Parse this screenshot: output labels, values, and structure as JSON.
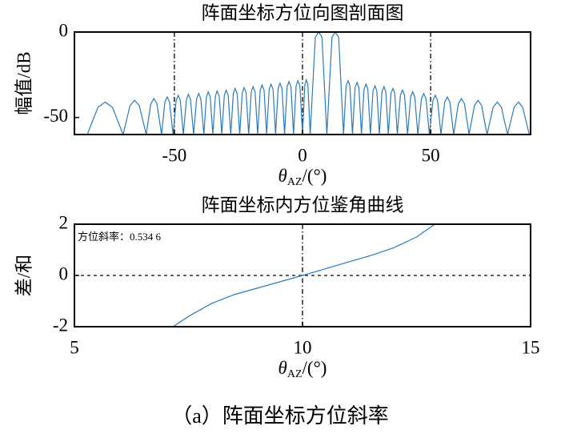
{
  "chart_data": [
    {
      "type": "line",
      "title": "阵面坐标方位向图剖面图",
      "ylabel": "幅值/dB",
      "xlabel": {
        "base": "θ",
        "sub": "AZ",
        "rest": "/(°)"
      },
      "xlim": [
        -89,
        89
      ],
      "ylim": [
        -60,
        0
      ],
      "xticks": [
        -50,
        0,
        50
      ],
      "yticks": [
        -50,
        0
      ],
      "xgrid": true,
      "grid": false,
      "color": "#2b7bba",
      "x": [
        -84,
        -79.8,
        -77,
        -74.2,
        -70,
        -67.3,
        -65.5,
        -63.7,
        -61,
        -59.2,
        -58,
        -56.8,
        -55,
        -53.7,
        -52.8,
        -51.9,
        -50.5,
        -49.3,
        -48.5,
        -47.7,
        -46.5,
        -45.3,
        -44.5,
        -43.7,
        -42.5,
        -41.3,
        -40.5,
        -39.7,
        -38.5,
        -37.5,
        -36.8,
        -36.0,
        -35,
        -34.0,
        -33.3,
        -32.5,
        -31.5,
        -30.5,
        -29.8,
        -29.0,
        -28,
        -27.0,
        -26.3,
        -25.5,
        -24.5,
        -23.5,
        -22.8,
        -22.0,
        -21,
        -20.0,
        -19.3,
        -18.5,
        -17.5,
        -16.5,
        -15.8,
        -15.0,
        -14,
        -13.0,
        -12.3,
        -11.5,
        -10.5,
        -9.5,
        -8.8,
        -8.0,
        -7,
        -6.0,
        -5.3,
        -4.5,
        -3.5,
        -2.5,
        -1.8,
        -1.0,
        0,
        0.9,
        1.5,
        2.1,
        3,
        5.0,
        6.3,
        7.6,
        9.5,
        11.5,
        12.8,
        14.1,
        16,
        17.0,
        17.8,
        18.5,
        19.5,
        20.5,
        21.3,
        22.0,
        23,
        24.0,
        24.8,
        25.5,
        26.5,
        27.5,
        28.3,
        29.0,
        30,
        31.0,
        31.8,
        32.5,
        33.5,
        34.5,
        35.3,
        36.0,
        37,
        38.2,
        39,
        39.8,
        41,
        42.2,
        43,
        43.8,
        45,
        46.4,
        47.3,
        48.2,
        49.5,
        50.9,
        51.8,
        52.7,
        54,
        55.5,
        56.5,
        57.5,
        59,
        60.8,
        62,
        63.2,
        65,
        67.1,
        68.5,
        69.9,
        72,
        74.4,
        76,
        77.6,
        80,
        82.6,
        84.3,
        85.9,
        88.5
      ],
      "values": [
        -60,
        -44,
        -41,
        -44,
        -60,
        -43,
        -40,
        -43,
        -60,
        -42,
        -39,
        -42,
        -60,
        -41,
        -38,
        -41,
        -60,
        -40,
        -37,
        -40,
        -60,
        -39.5,
        -36.5,
        -39.5,
        -60,
        -39,
        -36,
        -39,
        -60,
        -38,
        -35,
        -38,
        -60,
        -37.5,
        -34.5,
        -37.5,
        -60,
        -37,
        -34,
        -37,
        -60,
        -36,
        -33,
        -36,
        -60,
        -35.5,
        -32.5,
        -35.5,
        -60,
        -35,
        -32,
        -35,
        -60,
        -34,
        -31,
        -34,
        -60,
        -33.5,
        -30.5,
        -33.5,
        -60,
        -33,
        -30,
        -33,
        -60,
        -32,
        -29,
        -32,
        -60,
        -31.5,
        -28.5,
        -31.5,
        -60,
        -31,
        -28,
        -31,
        -60,
        -3,
        0,
        -3,
        -60,
        -3,
        0,
        -3,
        -60,
        -31.5,
        -28.5,
        -31.5,
        -60,
        -32.5,
        -29.5,
        -32.5,
        -60,
        -33.5,
        -30.5,
        -33.5,
        -60,
        -34.5,
        -31.5,
        -34.5,
        -60,
        -35,
        -32,
        -35,
        -60,
        -36,
        -33,
        -36,
        -60,
        -37,
        -34,
        -37,
        -60,
        -38,
        -35,
        -38,
        -60,
        -39,
        -36,
        -39,
        -60,
        -40,
        -37,
        -40,
        -60,
        -41,
        -38,
        -41,
        -60,
        -42,
        -39,
        -42,
        -60,
        -43,
        -40,
        -43,
        -60,
        -44,
        -41,
        -44,
        -60,
        -44,
        -41,
        -44,
        -60
      ]
    },
    {
      "type": "line",
      "title": "阵面坐标内方位鉴角曲线",
      "ylabel": "差/和",
      "xlabel": {
        "base": "θ",
        "sub": "AZ",
        "rest": "/(°)"
      },
      "annotation": "方位斜率：0.534 6",
      "xlim": [
        5,
        15
      ],
      "ylim": [
        -2,
        2
      ],
      "xticks": [
        5,
        10,
        15
      ],
      "yticks": [
        -2,
        0,
        2
      ],
      "xgrid": true,
      "grid": true,
      "color": "#2b7bba",
      "x": [
        7.16,
        7.5,
        8,
        8.5,
        9,
        9.5,
        10,
        10.5,
        11,
        11.5,
        12,
        12.5,
        12.9
      ],
      "values": [
        -2,
        -1.6,
        -1.1,
        -0.75,
        -0.5,
        -0.25,
        0,
        0.26,
        0.52,
        0.78,
        1.08,
        1.5,
        2
      ]
    }
  ],
  "caption": "（a）阵面坐标方位斜率"
}
